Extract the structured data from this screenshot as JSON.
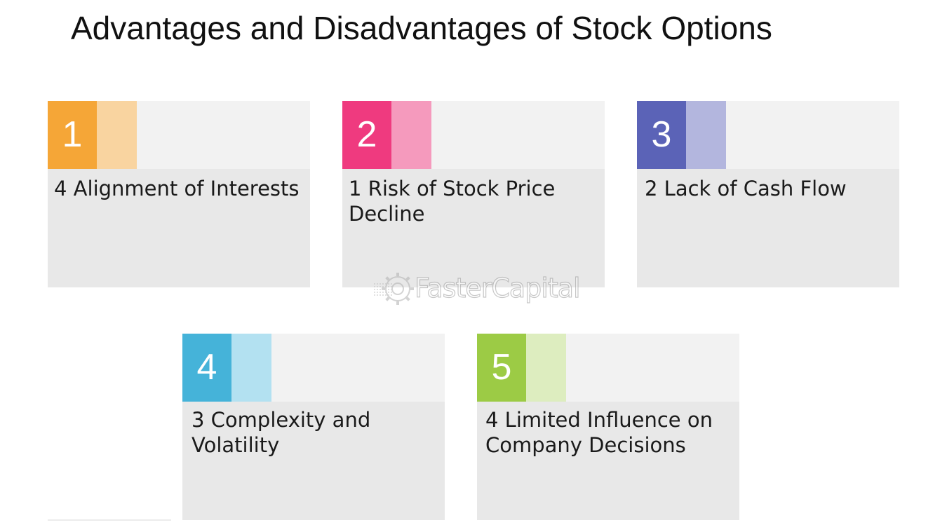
{
  "title": "Advantages and Disadvantages of Stock Options",
  "watermark": {
    "brand": "FasterCapital"
  },
  "cards": [
    {
      "number": "1",
      "text": "4 Alignment of Interests",
      "color": "#f5a637",
      "shade": "#f9d4a0"
    },
    {
      "number": "2",
      "text": "1 Risk of Stock Price Decline",
      "color": "#ef3a7f",
      "shade": "#f59abd"
    },
    {
      "number": "3",
      "text": "2 Lack of Cash Flow",
      "color": "#5b63b7",
      "shade": "#b3b6de"
    },
    {
      "number": "4",
      "text": "3 Complexity and Volatility",
      "color": "#45b3d9",
      "shade": "#b3e1f1"
    },
    {
      "number": "5",
      "text": "4 Limited Influence on Company Decisions",
      "color": "#9ccb45",
      "shade": "#ddedbf"
    }
  ]
}
